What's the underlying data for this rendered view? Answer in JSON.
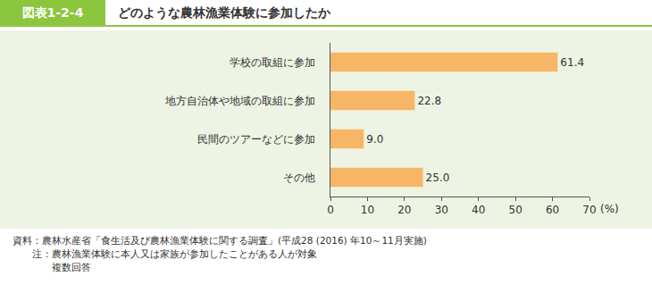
{
  "figure_label": "図表1-2-4",
  "chart_data": {
    "type": "bar",
    "orientation": "horizontal",
    "title": "どのような農林漁業体験に参加したか",
    "categories": [
      "学校の取組に参加",
      "地方自治体や地域の取組に参加",
      "民間のツアーなどに参加",
      "その他"
    ],
    "values": [
      61.4,
      22.8,
      9.0,
      25.0
    ],
    "value_labels": [
      "61.4",
      "22.8",
      "9.0",
      "25.0"
    ],
    "data_labels": true,
    "color": "#f7b666",
    "x_label": "(%)",
    "xlim": [
      0,
      70
    ],
    "xticks": [
      0,
      10,
      20,
      30,
      40,
      50,
      60,
      70
    ],
    "grid": false
  },
  "source": "資料：農林水産省「食生活及び農林漁業体験に関する調査」(平成28 (2016) 年10～11月実施)",
  "notes": [
    "注：農林漁業体験に本人又は家族が参加したことがある人が対象",
    "複数回答"
  ]
}
